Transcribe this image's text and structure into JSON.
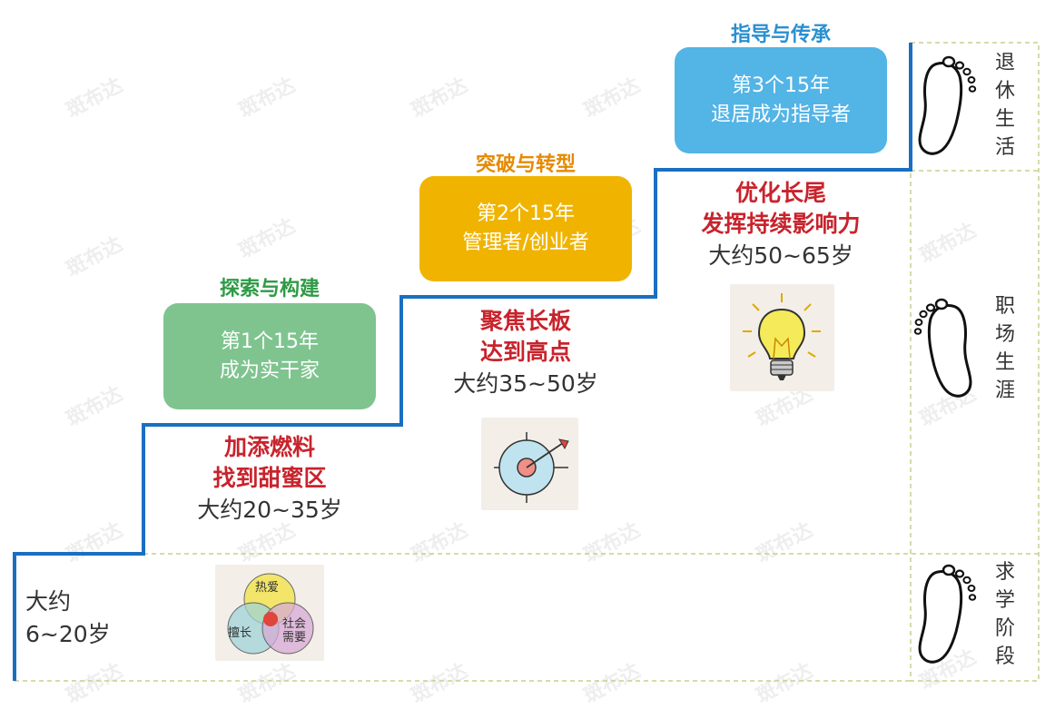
{
  "stages": [
    {
      "theme": "探索与构建",
      "box_line1": "第1个15年",
      "box_line2": "成为实干家",
      "red1": "加添燃料",
      "red2": "找到甜蜜区",
      "age": "大约20~35岁"
    },
    {
      "theme": "突破与转型",
      "box_line1": "第2个15年",
      "box_line2": "管理者/创业者",
      "red1": "聚焦长板",
      "red2": "达到高点",
      "age": "大约35~50岁"
    },
    {
      "theme": "指导与传承",
      "box_line1": "第3个15年",
      "box_line2": "退居成为指导者",
      "red1": "优化长尾",
      "red2": "发挥持续影响力",
      "age": "大约50~65岁"
    }
  ],
  "student": {
    "line1": "大约",
    "line2": "6~20岁"
  },
  "venn": {
    "top": "热爱",
    "left": "擅长",
    "right_line1": "社会",
    "right_line2": "需要"
  },
  "side_labels": [
    {
      "chars": [
        "退",
        "休",
        "生",
        "活"
      ]
    },
    {
      "chars": [
        "职",
        "场",
        "生",
        "涯"
      ]
    },
    {
      "chars": [
        "求",
        "学",
        "阶",
        "段"
      ]
    }
  ],
  "watermark": "斑布达",
  "colors": {
    "step_line": "#1a6fc1",
    "dash": "#c8cf8e",
    "box1": "#7fc48f",
    "box2": "#f0b400",
    "box3": "#53b4e6",
    "theme1": "#2e9a45",
    "theme2": "#e68a00",
    "theme3": "#2a8fd0",
    "red": "#c8232c"
  }
}
